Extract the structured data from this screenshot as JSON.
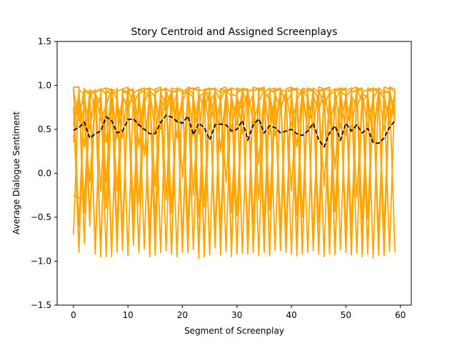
{
  "chart_data": {
    "type": "line",
    "title": "Story Centroid and Assigned Screenplays",
    "xlabel": "Segment of Screenplay",
    "ylabel": "Average Dialogue Sentiment",
    "xlim": [
      -3,
      62
    ],
    "ylim": [
      -1.5,
      1.5
    ],
    "x_ticks": [
      0,
      10,
      20,
      30,
      40,
      50,
      60
    ],
    "y_ticks": [
      -1.5,
      -1.0,
      -0.5,
      0.0,
      0.5,
      1.0,
      1.5
    ],
    "x_tick_labels": [
      "0",
      "10",
      "20",
      "30",
      "40",
      "50",
      "60"
    ],
    "y_tick_labels": [
      "−1.5",
      "−1.0",
      "−0.5",
      "0.0",
      "0.5",
      "1.0",
      "1.5"
    ],
    "grid": false,
    "centroid_color": "#000000",
    "screenplay_color": "#ffa500",
    "centroid": {
      "style": "dashed",
      "x": [
        0,
        1,
        2,
        3,
        4,
        5,
        6,
        7,
        8,
        9,
        10,
        11,
        12,
        13,
        14,
        15,
        16,
        17,
        18,
        19,
        20,
        21,
        22,
        23,
        24,
        25,
        26,
        27,
        28,
        29,
        30,
        31,
        32,
        33,
        34,
        35,
        36,
        37,
        38,
        39,
        40,
        41,
        42,
        43,
        44,
        45,
        46,
        47,
        48,
        49,
        50,
        51,
        52,
        53,
        54,
        55,
        56,
        57,
        58,
        59
      ],
      "values": [
        0.49,
        0.52,
        0.58,
        0.4,
        0.45,
        0.48,
        0.64,
        0.6,
        0.46,
        0.48,
        0.61,
        0.62,
        0.55,
        0.5,
        0.45,
        0.45,
        0.58,
        0.66,
        0.64,
        0.59,
        0.57,
        0.65,
        0.44,
        0.57,
        0.52,
        0.38,
        0.55,
        0.56,
        0.55,
        0.48,
        0.5,
        0.6,
        0.38,
        0.55,
        0.62,
        0.46,
        0.54,
        0.52,
        0.46,
        0.48,
        0.5,
        0.45,
        0.43,
        0.48,
        0.57,
        0.38,
        0.3,
        0.46,
        0.54,
        0.38,
        0.57,
        0.48,
        0.55,
        0.46,
        0.51,
        0.35,
        0.34,
        0.4,
        0.52,
        0.6
      ]
    },
    "screenplays": [
      {
        "values": [
          0.98,
          0.98,
          -0.8,
          0.95,
          0.9,
          -0.95,
          0.97,
          0.95,
          -0.9,
          0.96,
          0.98,
          -0.6,
          0.95,
          0.97,
          -0.95,
          0.96,
          0.98,
          -0.3,
          0.97,
          0.95,
          -0.9,
          0.98,
          0.96,
          -0.97,
          0.95,
          0.97,
          -0.85,
          0.96,
          0.98,
          -0.95,
          0.97,
          0.95,
          -0.92,
          0.98,
          0.96,
          -0.9,
          0.95,
          0.97,
          -0.88,
          0.96,
          0.98,
          -0.94,
          0.97,
          0.95,
          -0.85,
          0.98,
          0.96,
          -0.92,
          0.95,
          0.97,
          -0.9,
          0.96,
          0.98,
          -0.95,
          0.97,
          0.95,
          -0.93,
          0.98,
          0.96,
          -0.9
        ]
      },
      {
        "values": [
          0.75,
          -0.9,
          0.95,
          0.92,
          -0.85,
          0.96,
          0.9,
          -0.95,
          0.97,
          -0.88,
          0.94,
          0.96,
          -0.9,
          0.95,
          0.97,
          -0.93,
          0.96,
          0.94,
          -0.92,
          0.97,
          0.95,
          -0.9,
          0.96,
          0.98,
          -0.95,
          0.95,
          0.97,
          -0.88,
          0.96,
          0.94,
          -0.92,
          0.97,
          0.95,
          -0.9,
          0.96,
          0.98,
          -0.94,
          0.95,
          0.97,
          -0.9,
          0.96,
          0.94,
          -0.92,
          0.97,
          0.95,
          -0.88,
          0.96,
          0.98,
          -0.93,
          0.95,
          0.97,
          -0.9,
          0.96,
          0.94,
          -0.92,
          0.97,
          0.95,
          -0.94,
          0.98,
          0.96
        ]
      },
      {
        "values": [
          -0.7,
          0.95,
          0.9,
          -0.6,
          0.92,
          0.96,
          -0.95,
          0.94,
          0.9,
          -0.8,
          0.96,
          0.93,
          -0.88,
          0.95,
          0.97,
          -0.7,
          0.94,
          0.96,
          -0.92,
          0.95,
          0.93,
          -0.9,
          0.97,
          0.94,
          -0.85,
          0.96,
          0.95,
          -0.93,
          0.94,
          0.97,
          -0.9,
          0.95,
          0.96,
          -0.88,
          0.93,
          0.97,
          -0.92,
          0.94,
          0.95,
          -0.9,
          0.97,
          0.96,
          -0.86,
          0.95,
          0.94,
          -0.92,
          0.96,
          0.97,
          -0.9,
          0.94,
          0.95,
          -0.93,
          0.96,
          0.97,
          -0.88,
          0.95,
          0.94,
          -0.91,
          0.96,
          0.65
        ]
      },
      {
        "values": [
          0.4,
          0.92,
          -0.45,
          0.88,
          0.95,
          -0.2,
          0.93,
          0.9,
          -0.6,
          0.95,
          0.92,
          -0.4,
          0.9,
          0.94,
          -0.7,
          0.93,
          0.95,
          -0.3,
          0.92,
          0.94,
          -0.8,
          0.95,
          0.91,
          -0.5,
          0.93,
          0.96,
          -0.65,
          0.92,
          0.94,
          -0.45,
          0.95,
          0.93,
          -0.72,
          0.94,
          0.96,
          -0.55,
          0.92,
          0.95,
          -0.62,
          0.94,
          0.93,
          -0.48,
          0.95,
          0.92,
          -0.7,
          0.94,
          0.96,
          -0.58,
          0.93,
          0.95,
          -0.66,
          0.92,
          0.94,
          -0.52,
          0.95,
          0.93,
          -0.68,
          0.94,
          0.92,
          0.6
        ]
      },
      {
        "values": [
          0.7,
          0.85,
          0.55,
          -0.1,
          0.9,
          0.8,
          0.35,
          0.95,
          -0.2,
          0.88,
          0.75,
          0.92,
          0.3,
          0.94,
          0.86,
          -0.15,
          0.91,
          0.78,
          0.93,
          0.4,
          0.89,
          0.95,
          -0.25,
          0.87,
          0.92,
          0.5,
          0.94,
          0.83,
          -0.1,
          0.9,
          0.88,
          0.45,
          0.93,
          0.95,
          -0.3,
          0.86,
          0.91,
          0.55,
          0.94,
          0.82,
          -0.2,
          0.92,
          0.89,
          0.48,
          0.95,
          0.84,
          -0.15,
          0.9,
          0.93,
          0.52,
          0.88,
          0.95,
          -0.28,
          0.91,
          0.86,
          0.46,
          0.94,
          0.9,
          0.55,
          0.8
        ]
      },
      {
        "values": [
          -0.25,
          -0.28,
          -0.3,
          0.9,
          0.95,
          -0.85,
          0.92,
          0.96,
          -0.75,
          0.94,
          0.9,
          -0.82,
          0.95,
          0.93,
          -0.7,
          0.91,
          0.96,
          -0.88,
          0.94,
          0.92,
          -0.78,
          0.95,
          0.97,
          -0.83,
          0.93,
          0.9,
          -0.76,
          0.96,
          0.94,
          -0.86,
          0.92,
          0.95,
          -0.8,
          0.94,
          0.97,
          -0.72,
          0.95,
          0.91,
          -0.84,
          0.93,
          0.96,
          -0.78,
          0.94,
          0.92,
          -0.88,
          0.95,
          0.93,
          -0.74,
          0.96,
          0.94,
          -0.82,
          0.92,
          0.95,
          -0.79,
          0.94,
          0.97,
          -0.85,
          0.93,
          0.91,
          0.7
        ]
      },
      {
        "values": [
          0.95,
          0.6,
          0.97,
          -0.5,
          0.93,
          0.96,
          -0.4,
          0.95,
          0.94,
          -0.65,
          0.97,
          0.92,
          -0.35,
          0.96,
          0.95,
          -0.55,
          0.94,
          0.97,
          -0.45,
          0.95,
          0.93,
          -0.6,
          0.96,
          0.94,
          -0.38,
          0.97,
          0.95,
          -0.62,
          0.93,
          0.96,
          -0.48,
          0.95,
          0.94,
          -0.58,
          0.97,
          0.93,
          -0.42,
          0.96,
          0.95,
          -0.66,
          0.94,
          0.97,
          -0.5,
          0.95,
          0.93,
          -0.56,
          0.96,
          0.94,
          -0.44,
          0.97,
          0.95,
          -0.6,
          0.93,
          0.96,
          -0.52,
          0.95,
          0.94,
          -0.64,
          0.97,
          0.93
        ]
      },
      {
        "values": [
          0.55,
          0.9,
          0.3,
          0.95,
          0.7,
          0.88,
          -0.1,
          0.93,
          0.85,
          0.4,
          0.96,
          0.78,
          0.92,
          0.2,
          0.94,
          0.87,
          0.5,
          0.95,
          0.72,
          0.91,
          -0.05,
          0.93,
          0.86,
          0.45,
          0.96,
          0.8,
          0.92,
          0.25,
          0.94,
          0.88,
          0.55,
          0.95,
          0.74,
          0.9,
          0.1,
          0.93,
          0.84,
          0.42,
          0.96,
          0.79,
          0.91,
          0.3,
          0.94,
          0.86,
          0.52,
          0.95,
          0.76,
          0.92,
          0.05,
          0.93,
          0.88,
          0.48,
          0.96,
          0.81,
          0.9,
          0.35,
          0.94,
          0.85,
          0.58,
          0.92
        ]
      },
      {
        "values": [
          0.98,
          -0.6,
          0.94,
          0.9,
          -0.92,
          0.95,
          0.97,
          -0.88,
          0.93,
          0.96,
          -0.94,
          0.92,
          0.95,
          -0.86,
          0.97,
          0.94,
          -0.9,
          0.96,
          0.93,
          -0.95,
          0.92,
          0.97,
          -0.87,
          0.95,
          0.94,
          -0.93,
          0.96,
          0.92,
          -0.89,
          0.97,
          0.95,
          -0.91,
          0.93,
          0.96,
          -0.94,
          0.92,
          0.97,
          -0.88,
          0.95,
          0.93,
          -0.92,
          0.96,
          0.94,
          -0.9,
          0.97,
          0.92,
          -0.95,
          0.93,
          0.96,
          -0.87,
          0.94,
          0.97,
          -0.91,
          0.92,
          0.95,
          -0.96,
          0.97,
          0.93,
          -0.89,
          0.95
        ]
      },
      {
        "values": [
          0.35,
          0.7,
          0.85,
          0.5,
          0.92,
          0.6,
          0.78,
          0.95,
          0.4,
          0.88,
          0.72,
          0.94,
          0.55,
          0.8,
          0.96,
          0.45,
          0.86,
          0.68,
          0.93,
          0.58,
          0.82,
          0.95,
          0.42,
          0.89,
          0.74,
          0.92,
          0.52,
          0.84,
          0.96,
          0.48,
          0.87,
          0.7,
          0.94,
          0.56,
          0.81,
          0.95,
          0.44,
          0.9,
          0.73,
          0.93,
          0.54,
          0.83,
          0.96,
          0.47,
          0.88,
          0.71,
          0.94,
          0.57,
          0.82,
          0.95,
          0.43,
          0.89,
          0.75,
          0.92,
          0.53,
          0.85,
          0.96,
          0.49,
          0.87,
          0.72
        ]
      }
    ]
  }
}
